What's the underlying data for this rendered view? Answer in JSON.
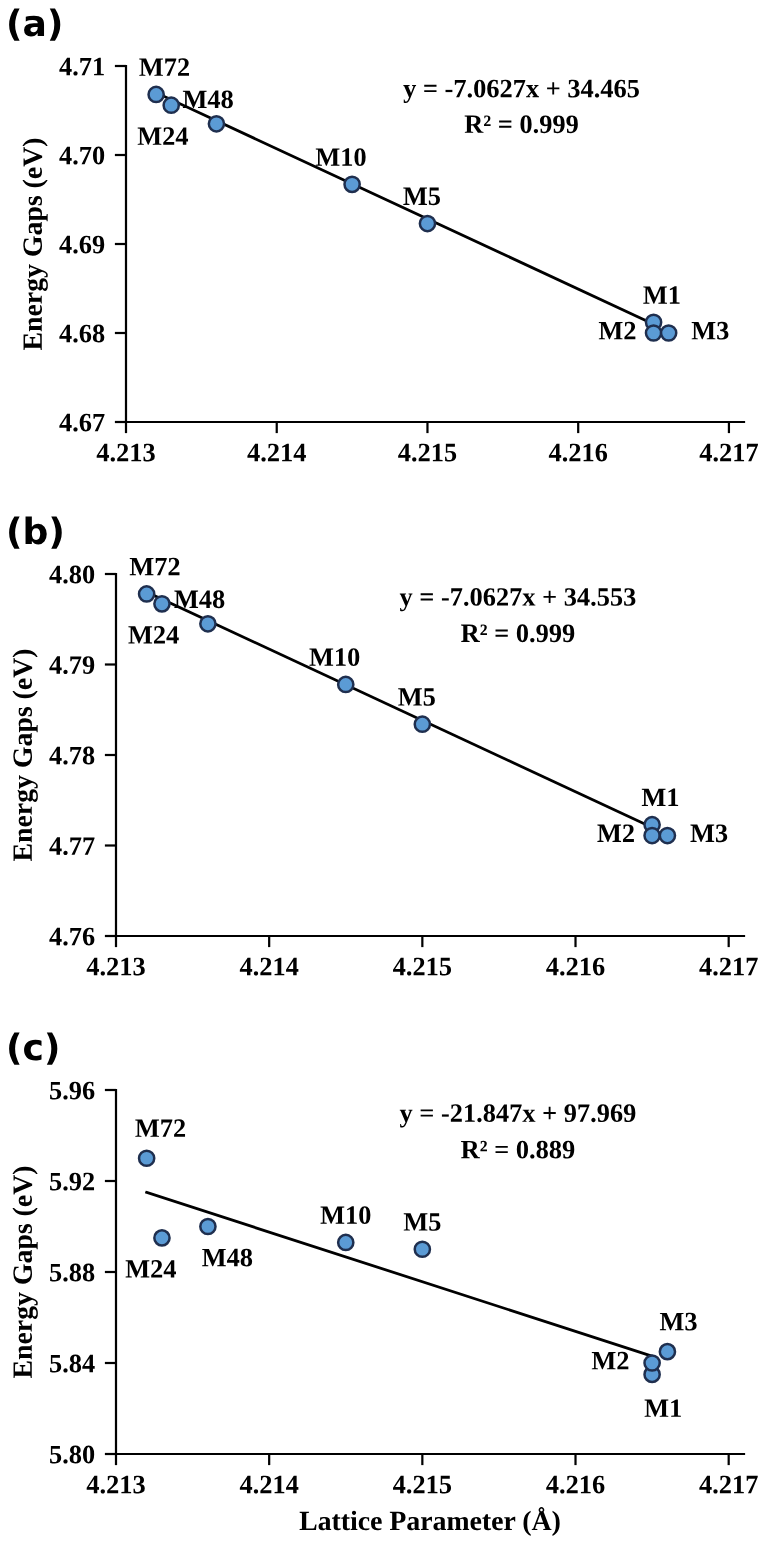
{
  "chart_data": [
    {
      "type": "scatter",
      "title": "(a)",
      "ylabel": "Energy Gaps (eV)",
      "grid": false,
      "legend": false,
      "xlim": [
        4.213,
        4.2171
      ],
      "xticks": [
        4.213,
        4.214,
        4.215,
        4.216,
        4.217
      ],
      "ylim": [
        4.67,
        4.71
      ],
      "yticks": [
        4.67,
        4.68,
        4.69,
        {
          "value": 4.7,
          "label": "4.70"
        },
        4.71
      ],
      "series": [
        {
          "marker": "circle",
          "color": "#5b9bd5",
          "x": [
            4.2132,
            4.2133,
            4.2136,
            4.2145,
            4.215,
            4.2165,
            4.2165,
            4.2166
          ],
          "values": [
            4.7068,
            4.7056,
            4.7035,
            4.6967,
            4.6923,
            4.6812,
            4.68,
            4.68
          ]
        },
        {
          "type": "line",
          "color": "#000000",
          "x": [
            4.2132,
            4.2165
          ],
          "values": [
            4.707,
            4.681
          ]
        }
      ],
      "annotations": [
        {
          "text": "M72",
          "x": 4.2132,
          "y": 4.7068
        },
        {
          "text": "M24",
          "x": 4.2133,
          "y": 4.7056
        },
        {
          "text": "M48",
          "x": 4.2136,
          "y": 4.7035
        },
        {
          "text": "M10",
          "x": 4.2145,
          "y": 4.6967
        },
        {
          "text": "M5",
          "x": 4.215,
          "y": 4.6923
        },
        {
          "text": "M1",
          "x": 4.2165,
          "y": 4.6812
        },
        {
          "text": "M2",
          "x": 4.2165,
          "y": 4.68
        },
        {
          "text": "M3",
          "x": 4.2166,
          "y": 4.68
        },
        "y = -7.0627x + 34.465",
        "R² = 0.999"
      ]
    },
    {
      "type": "scatter",
      "title": "(b)",
      "ylabel": "Energy Gaps (eV)",
      "grid": false,
      "legend": false,
      "xlim": [
        4.213,
        4.2171
      ],
      "xticks": [
        4.213,
        4.214,
        4.215,
        4.216,
        4.217
      ],
      "ylim": [
        4.76,
        4.8
      ],
      "yticks": [
        4.76,
        4.77,
        4.78,
        4.79,
        {
          "value": 4.8,
          "label": "4.80"
        }
      ],
      "series": [
        {
          "marker": "circle",
          "color": "#5b9bd5",
          "x": [
            4.2132,
            4.2133,
            4.2136,
            4.2145,
            4.215,
            4.2165,
            4.2165,
            4.2166
          ],
          "values": [
            4.7978,
            4.7967,
            4.7945,
            4.7878,
            4.7834,
            4.7723,
            4.7711,
            4.7711
          ]
        },
        {
          "type": "line",
          "color": "#000000",
          "x": [
            4.2132,
            4.2165
          ],
          "values": [
            4.798,
            4.772
          ]
        }
      ],
      "annotations": [
        {
          "text": "M72",
          "x": 4.2132,
          "y": 4.7978
        },
        {
          "text": "M24",
          "x": 4.2133,
          "y": 4.7967
        },
        {
          "text": "M48",
          "x": 4.2136,
          "y": 4.7945
        },
        {
          "text": "M10",
          "x": 4.2145,
          "y": 4.7878
        },
        {
          "text": "M5",
          "x": 4.215,
          "y": 4.7834
        },
        {
          "text": "M1",
          "x": 4.2165,
          "y": 4.7723
        },
        {
          "text": "M2",
          "x": 4.2165,
          "y": 4.7711
        },
        {
          "text": "M3",
          "x": 4.2166,
          "y": 4.7711
        },
        "y = -7.0627x + 34.553",
        "R² = 0.999"
      ]
    },
    {
      "type": "scatter",
      "title": "(c)",
      "xlabel": "Lattice Parameter (Å)",
      "ylabel": "Energy Gaps (eV)",
      "grid": false,
      "legend": false,
      "xlim": [
        4.213,
        4.2171
      ],
      "xticks": [
        4.213,
        4.214,
        4.215,
        4.216,
        4.217
      ],
      "ylim": [
        5.8,
        5.96
      ],
      "yticks": [
        {
          "value": 5.8,
          "label": "5.80"
        },
        5.84,
        5.88,
        5.92,
        5.96
      ],
      "series": [
        {
          "marker": "circle",
          "color": "#5b9bd5",
          "x": [
            4.2132,
            4.2133,
            4.2136,
            4.2145,
            4.215,
            4.2165,
            4.2165,
            4.2166
          ],
          "values": [
            5.93,
            5.895,
            5.9,
            5.893,
            5.89,
            5.835,
            5.84,
            5.845
          ]
        },
        {
          "type": "line",
          "color": "#000000",
          "x": [
            4.2132,
            4.2165
          ],
          "values": [
            5.915,
            5.843
          ]
        }
      ],
      "annotations": [
        {
          "text": "M72",
          "x": 4.2132,
          "y": 5.93
        },
        {
          "text": "M24",
          "x": 4.2133,
          "y": 5.895
        },
        {
          "text": "M48",
          "x": 4.2136,
          "y": 5.9
        },
        {
          "text": "M10",
          "x": 4.2145,
          "y": 5.893
        },
        {
          "text": "M5",
          "x": 4.215,
          "y": 5.89
        },
        {
          "text": "M1",
          "x": 4.2165,
          "y": 5.835
        },
        {
          "text": "M2",
          "x": 4.2165,
          "y": 5.84
        },
        {
          "text": "M3",
          "x": 4.2166,
          "y": 5.845
        },
        "y = -21.847x + 97.969",
        "R² = 0.889"
      ]
    }
  ]
}
